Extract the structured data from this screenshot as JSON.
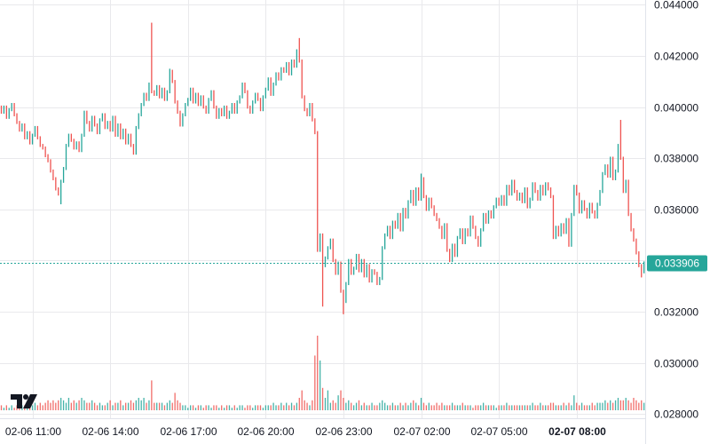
{
  "chart_data": {
    "type": "candlestick",
    "title": "",
    "xlabel": "",
    "ylabel": "",
    "ylim": [
      0.028,
      0.044
    ],
    "grid": true,
    "colors": {
      "up": "#26a69a",
      "down": "#ef5350",
      "grid": "#e9e9ec",
      "text": "#131722",
      "last_price_bg": "#26a69a"
    },
    "yticks": [
      "0.044000",
      "0.042000",
      "0.040000",
      "0.038000",
      "0.036000",
      "0.034000",
      "0.032000",
      "0.030000",
      "0.028000"
    ],
    "ytick_values": [
      0.044,
      0.042,
      0.04,
      0.038,
      0.036,
      0.034,
      0.032,
      0.03,
      0.028
    ],
    "hidden_ytick_labels": [
      "0.034000"
    ],
    "xticks": [
      {
        "label": "02-06 11:00",
        "index": 12,
        "bold": false
      },
      {
        "label": "02-06 14:00",
        "index": 42,
        "bold": false
      },
      {
        "label": "02-06 17:00",
        "index": 72,
        "bold": false
      },
      {
        "label": "02-06 20:00",
        "index": 102,
        "bold": false
      },
      {
        "label": "02-06 23:00",
        "index": 132,
        "bold": false
      },
      {
        "label": "02-07 02:00",
        "index": 162,
        "bold": false
      },
      {
        "label": "02-07 05:00",
        "index": 192,
        "bold": false
      },
      {
        "label": "02-07 08:00",
        "index": 222,
        "bold": true
      }
    ],
    "last_price": "0.033906",
    "last_price_value": 0.033906,
    "first_open": 0.04,
    "closes": [
      0.0398,
      0.04,
      0.0396,
      0.0399,
      0.0401,
      0.0397,
      0.0394,
      0.0391,
      0.0393,
      0.0388,
      0.039,
      0.0386,
      0.0389,
      0.0392,
      0.0388,
      0.0385,
      0.0384,
      0.0381,
      0.0379,
      0.0375,
      0.0372,
      0.0368,
      0.0366,
      0.0371,
      0.0376,
      0.0385,
      0.0389,
      0.0387,
      0.0384,
      0.0386,
      0.0383,
      0.0389,
      0.0398,
      0.0394,
      0.0391,
      0.0396,
      0.0393,
      0.039,
      0.0395,
      0.0397,
      0.0392,
      0.0394,
      0.0391,
      0.0396,
      0.0389,
      0.0393,
      0.0388,
      0.0391,
      0.0386,
      0.0389,
      0.0385,
      0.0382,
      0.0392,
      0.0397,
      0.0401,
      0.0405,
      0.0403,
      0.0409,
      0.0406,
      0.0405,
      0.0408,
      0.0404,
      0.0407,
      0.0403,
      0.0406,
      0.0414,
      0.041,
      0.0402,
      0.0398,
      0.0393,
      0.0397,
      0.0401,
      0.0403,
      0.0407,
      0.0402,
      0.0405,
      0.0401,
      0.0404,
      0.04,
      0.0398,
      0.0403,
      0.0406,
      0.04,
      0.0396,
      0.0399,
      0.0397,
      0.04,
      0.0396,
      0.0398,
      0.0401,
      0.0398,
      0.0402,
      0.0404,
      0.0409,
      0.0406,
      0.04,
      0.0398,
      0.0402,
      0.0405,
      0.0403,
      0.0399,
      0.0404,
      0.0407,
      0.0411,
      0.0405,
      0.0409,
      0.0413,
      0.0411,
      0.0415,
      0.0414,
      0.0417,
      0.0413,
      0.0418,
      0.0416,
      0.0422,
      0.0418,
      0.0404,
      0.0399,
      0.0397,
      0.0401,
      0.0395,
      0.039,
      0.0344,
      0.035,
      0.0338,
      0.0341,
      0.0345,
      0.0348,
      0.034,
      0.0335,
      0.0339,
      0.0328,
      0.0324,
      0.0331,
      0.034,
      0.0335,
      0.0337,
      0.0342,
      0.0336,
      0.034,
      0.0334,
      0.0338,
      0.0332,
      0.0336,
      0.0335,
      0.0331,
      0.0333,
      0.0345,
      0.035,
      0.0353,
      0.0349,
      0.0355,
      0.0353,
      0.0358,
      0.0352,
      0.036,
      0.0357,
      0.0363,
      0.0367,
      0.0362,
      0.0368,
      0.0364,
      0.0372,
      0.0365,
      0.036,
      0.0364,
      0.0361,
      0.0358,
      0.0356,
      0.0353,
      0.0349,
      0.0354,
      0.0344,
      0.034,
      0.0346,
      0.0342,
      0.0349,
      0.0352,
      0.0347,
      0.0352,
      0.035,
      0.0357,
      0.0353,
      0.0349,
      0.0346,
      0.0352,
      0.0358,
      0.0355,
      0.0359,
      0.0357,
      0.0361,
      0.0364,
      0.0362,
      0.0365,
      0.0362,
      0.0369,
      0.0366,
      0.0371,
      0.0367,
      0.0364,
      0.0366,
      0.0363,
      0.0368,
      0.0361,
      0.0364,
      0.037,
      0.0367,
      0.0364,
      0.0369,
      0.0366,
      0.037,
      0.0368,
      0.0365,
      0.0349,
      0.0353,
      0.035,
      0.0354,
      0.0351,
      0.0356,
      0.0346,
      0.0358,
      0.0369,
      0.0366,
      0.0359,
      0.0363,
      0.036,
      0.0357,
      0.0362,
      0.0359,
      0.0357,
      0.0362,
      0.0367,
      0.0374,
      0.0377,
      0.0373,
      0.038,
      0.0372,
      0.0375,
      0.0385,
      0.038,
      0.0367,
      0.0371,
      0.0358,
      0.0352,
      0.0348,
      0.0343,
      0.0338,
      0.0334,
      0.033906
    ],
    "wick_extremes": [
      {
        "index": 23,
        "low": 0.0362
      },
      {
        "index": 58,
        "high": 0.0433
      },
      {
        "index": 65,
        "high": 0.0415
      },
      {
        "index": 115,
        "high": 0.0427
      },
      {
        "index": 124,
        "low": 0.0322
      },
      {
        "index": 132,
        "low": 0.0319
      },
      {
        "index": 162,
        "high": 0.0374
      },
      {
        "index": 239,
        "high": 0.0395
      },
      {
        "index": 248,
        "low": 0.0335
      }
    ],
    "volume": [
      2,
      1,
      2,
      1,
      2,
      1,
      2,
      1,
      2,
      2,
      2,
      1,
      2,
      3,
      2,
      3,
      2,
      3,
      4,
      3,
      4,
      3,
      4,
      5,
      4,
      3,
      5,
      3,
      4,
      3,
      4,
      5,
      4,
      3,
      3,
      4,
      3,
      2,
      3,
      2,
      2,
      3,
      4,
      2,
      3,
      3,
      4,
      2,
      3,
      3,
      4,
      3,
      4,
      5,
      4,
      5,
      3,
      4,
      12,
      3,
      3,
      3,
      3,
      2,
      3,
      4,
      3,
      7,
      4,
      3,
      2,
      2,
      1,
      2,
      2,
      1,
      2,
      2,
      1,
      2,
      2,
      1,
      2,
      2,
      1,
      2,
      1,
      2,
      2,
      1,
      2,
      1,
      2,
      2,
      1,
      2,
      2,
      1,
      2,
      2,
      2,
      1,
      2,
      2,
      2,
      3,
      2,
      2,
      3,
      2,
      3,
      2,
      3,
      2,
      3,
      5,
      8,
      4,
      3,
      2,
      4,
      22,
      30,
      20,
      9,
      5,
      8,
      3,
      4,
      3,
      6,
      8,
      5,
      3,
      4,
      3,
      2,
      3,
      4,
      2,
      3,
      2,
      2,
      3,
      2,
      2,
      3,
      4,
      3,
      2,
      2,
      3,
      2,
      2,
      3,
      2,
      3,
      2,
      3,
      4,
      3,
      2,
      5,
      3,
      2,
      3,
      2,
      2,
      3,
      2,
      3,
      2,
      2,
      2,
      3,
      2,
      2,
      2,
      3,
      2,
      2,
      2,
      1,
      2,
      2,
      2,
      3,
      2,
      2,
      2,
      2,
      1,
      2,
      2,
      2,
      3,
      2,
      2,
      2,
      2,
      2,
      2,
      2,
      2,
      2,
      3,
      2,
      2,
      3,
      2,
      2,
      2,
      3,
      3,
      2,
      2,
      2,
      3,
      2,
      3,
      2,
      6,
      3,
      2,
      3,
      2,
      2,
      2,
      3,
      2,
      3,
      3,
      3,
      4,
      3,
      4,
      3,
      4,
      5,
      4,
      4,
      5,
      4,
      3,
      5,
      4,
      3,
      4,
      3
    ]
  },
  "branding": {
    "logo_text": "TV"
  }
}
